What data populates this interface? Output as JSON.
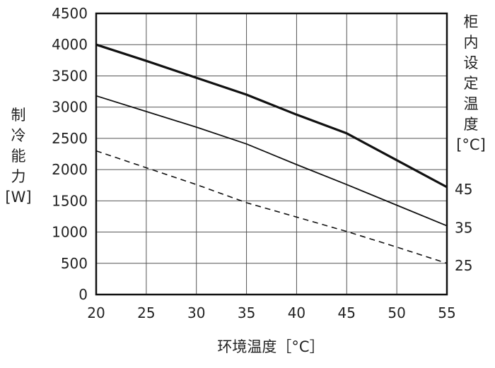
{
  "chart_data": {
    "type": "line",
    "title": "",
    "xlabel": "环境温度［°C］",
    "ylabel": [
      "制",
      "冷",
      "能",
      "力",
      "[W]"
    ],
    "y2label": [
      "柜",
      "内",
      "设",
      "定",
      "温",
      "度",
      "[°C]"
    ],
    "xlim": [
      20,
      55
    ],
    "ylim": [
      0,
      4500
    ],
    "x_ticks": [
      "20",
      "25",
      "30",
      "35",
      "40",
      "45",
      "50",
      "55"
    ],
    "y_ticks": [
      "0",
      "500",
      "1000",
      "1500",
      "2000",
      "2500",
      "3000",
      "3500",
      "4000",
      "4500"
    ],
    "grid": true,
    "legend": "right-end labels",
    "series": [
      {
        "name": "45",
        "style": "solid-thick",
        "points": [
          [
            20,
            4000
          ],
          [
            25,
            3740
          ],
          [
            30,
            3470
          ],
          [
            35,
            3200
          ],
          [
            40,
            2880
          ],
          [
            45,
            2580
          ],
          [
            50,
            2150
          ],
          [
            55,
            1720
          ]
        ]
      },
      {
        "name": "35",
        "style": "solid",
        "points": [
          [
            20,
            3180
          ],
          [
            25,
            2930
          ],
          [
            30,
            2680
          ],
          [
            35,
            2410
          ],
          [
            40,
            2080
          ],
          [
            45,
            1760
          ],
          [
            50,
            1430
          ],
          [
            55,
            1100
          ]
        ]
      },
      {
        "name": "25",
        "style": "dashed",
        "points": [
          [
            20,
            2300
          ],
          [
            25,
            2030
          ],
          [
            30,
            1760
          ],
          [
            35,
            1470
          ],
          [
            40,
            1240
          ],
          [
            45,
            1010
          ],
          [
            50,
            760
          ],
          [
            55,
            500
          ]
        ]
      }
    ]
  }
}
